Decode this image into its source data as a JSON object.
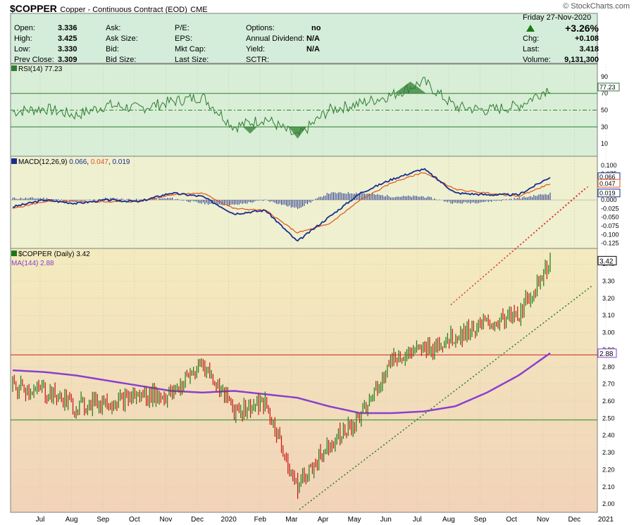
{
  "header": {
    "symbol": "$COPPER",
    "name": "Copper - Continuous Contract (EOD)",
    "exchange": "CME",
    "watermark": "© StockCharts.com"
  },
  "quote": {
    "left": [
      {
        "label": "Open:",
        "value": "3.336"
      },
      {
        "label": "High:",
        "value": "3.425"
      },
      {
        "label": "Low:",
        "value": "3.330"
      },
      {
        "label": "Prev Close:",
        "value": "3.309"
      }
    ],
    "col2": [
      "Ask:",
      "Ask Size:",
      "Bid:",
      "Bid Size:"
    ],
    "col3": [
      "P/E:",
      "EPS:",
      "Mkt Cap:",
      "Last Size:"
    ],
    "col4": [
      {
        "label": "Options:",
        "value": "no"
      },
      {
        "label": "Annual Dividend:",
        "value": "N/A"
      },
      {
        "label": "Yield:",
        "value": "N/A"
      },
      {
        "label": "SCTR:",
        "value": ""
      }
    ],
    "date": "Friday  27-Nov-2020",
    "change_pct": "+3.26%",
    "right": [
      {
        "label": "Chg:",
        "value": "+0.108"
      },
      {
        "label": "Last:",
        "value": "3.418"
      },
      {
        "label": "Volume:",
        "value": "9,131,300"
      }
    ]
  },
  "panels": {
    "rsi_label": "RSI(14) 77.23",
    "macd_label": "MACD(12,26,9)",
    "macd_vals": [
      "0.066",
      "0.047",
      "0.019"
    ],
    "price_label": "$COPPER (Daily) 3.42",
    "ma_label": "MA(144) 2.88"
  },
  "colors": {
    "quote_bg": "#d4eddb",
    "rsi_bg": "#d9eed6",
    "macd_bg": "#eef0cf",
    "rsi_line": "#2e7d32",
    "macd_line": "#1a2e8c",
    "signal_line": "#e0521b",
    "hist": "#1a2e8c",
    "up_bar": "#1a7a14",
    "down_bar": "#cc1010",
    "ma": "#8b3fd0",
    "support_red": "#cc2222",
    "support_green": "#1f8a1f",
    "trend_green": "#2a7a2a",
    "trend_red": "#e03030"
  },
  "chart_data": [
    {
      "type": "line",
      "title": "RSI(14) 77.23",
      "y_ticks": [
        90,
        70,
        50,
        30,
        10
      ],
      "ylim": [
        0,
        100
      ],
      "reference_lines": [
        70,
        50,
        30
      ],
      "last_value_tag": "77.23",
      "x": [
        "Jul",
        "Aug",
        "Sep",
        "Oct",
        "Nov",
        "Dec",
        "2020",
        "Feb",
        "Mar",
        "Apr",
        "May",
        "Jun",
        "Jul",
        "Aug",
        "Sep",
        "Oct",
        "Nov",
        "Dec"
      ],
      "series": [
        {
          "name": "RSI(14)",
          "values": [
            48,
            52,
            44,
            56,
            52,
            60,
            66,
            30,
            40,
            18,
            50,
            58,
            68,
            84,
            54,
            50,
            55,
            77
          ]
        }
      ]
    },
    {
      "type": "line",
      "title": "MACD(12,26,9) 0.066, 0.047, 0.019",
      "y_ticks": [
        "0.100",
        "0.075",
        "0.050",
        "0.025",
        "0.000",
        "-0.025",
        "-0.050",
        "-0.075",
        "-0.100",
        "-0.125"
      ],
      "ylim": [
        -0.13,
        0.11
      ],
      "last_value_tags": [
        "0.066",
        "0.047",
        "0.019"
      ],
      "x": [
        "Jul",
        "Aug",
        "Sep",
        "Oct",
        "Nov",
        "Dec",
        "2020",
        "Feb",
        "Mar",
        "Apr",
        "May",
        "Jun",
        "Jul",
        "Aug",
        "Sep",
        "Oct",
        "Nov",
        "Dec"
      ],
      "series": [
        {
          "name": "MACD",
          "values": [
            -0.02,
            0.0,
            -0.01,
            0.0,
            -0.005,
            0.02,
            0.01,
            -0.04,
            -0.03,
            -0.12,
            -0.05,
            0.02,
            0.06,
            0.09,
            0.02,
            0.015,
            0.015,
            0.066
          ]
        },
        {
          "name": "Signal",
          "values": [
            -0.025,
            -0.005,
            -0.005,
            -0.005,
            -0.005,
            0.015,
            0.02,
            -0.025,
            -0.03,
            -0.095,
            -0.07,
            0.0,
            0.05,
            0.08,
            0.03,
            0.02,
            0.01,
            0.047
          ]
        },
        {
          "name": "Histogram",
          "values": [
            0.005,
            0.005,
            -0.005,
            0.005,
            0.0,
            0.005,
            -0.01,
            -0.015,
            0.0,
            -0.025,
            0.02,
            0.02,
            0.01,
            0.01,
            -0.01,
            -0.005,
            0.005,
            0.019
          ]
        }
      ]
    },
    {
      "type": "line",
      "title": "$COPPER (Daily) 3.42",
      "y_ticks": [
        "3.40",
        "3.30",
        "3.20",
        "3.10",
        "3.00",
        "2.90",
        "2.80",
        "2.70",
        "2.60",
        "2.50",
        "2.40",
        "2.30",
        "2.20",
        "2.10",
        "2.00"
      ],
      "ylim": [
        1.96,
        3.5
      ],
      "x_ticks": [
        "Jul",
        "Aug",
        "Sep",
        "Oct",
        "Nov",
        "Dec",
        "2020",
        "Feb",
        "Mar",
        "Apr",
        "May",
        "Jun",
        "Jul",
        "Aug",
        "Sep",
        "Oct",
        "Nov",
        "Dec",
        "2021"
      ],
      "last_value_tags": [
        "3.42",
        "2.88"
      ],
      "horizontal_lines": [
        {
          "value": 2.87,
          "color": "red"
        },
        {
          "value": 2.49,
          "color": "green"
        }
      ],
      "series": [
        {
          "name": "$COPPER (Daily)",
          "x": [
            "Jul",
            "Aug",
            "Sep",
            "Oct",
            "Nov",
            "Dec",
            "2020",
            "Feb",
            "Mar",
            "Apr",
            "May",
            "Jun",
            "Jul",
            "Aug",
            "Sep",
            "Oct",
            "Nov",
            "Dec"
          ],
          "values": [
            2.68,
            2.66,
            2.57,
            2.6,
            2.63,
            2.63,
            2.82,
            2.55,
            2.58,
            2.1,
            2.35,
            2.5,
            2.85,
            2.9,
            2.98,
            3.05,
            3.1,
            3.42
          ]
        },
        {
          "name": "MA(144)",
          "x": [
            "Jul",
            "Aug",
            "Sep",
            "Oct",
            "Nov",
            "Dec",
            "2020",
            "Feb",
            "Mar",
            "Apr",
            "May",
            "Jun",
            "Jul",
            "Aug",
            "Sep",
            "Oct",
            "Nov",
            "Dec"
          ],
          "values": [
            2.78,
            2.77,
            2.75,
            2.72,
            2.69,
            2.66,
            2.65,
            2.66,
            2.64,
            2.62,
            2.57,
            2.53,
            2.53,
            2.54,
            2.57,
            2.65,
            2.75,
            2.88
          ]
        }
      ]
    }
  ]
}
